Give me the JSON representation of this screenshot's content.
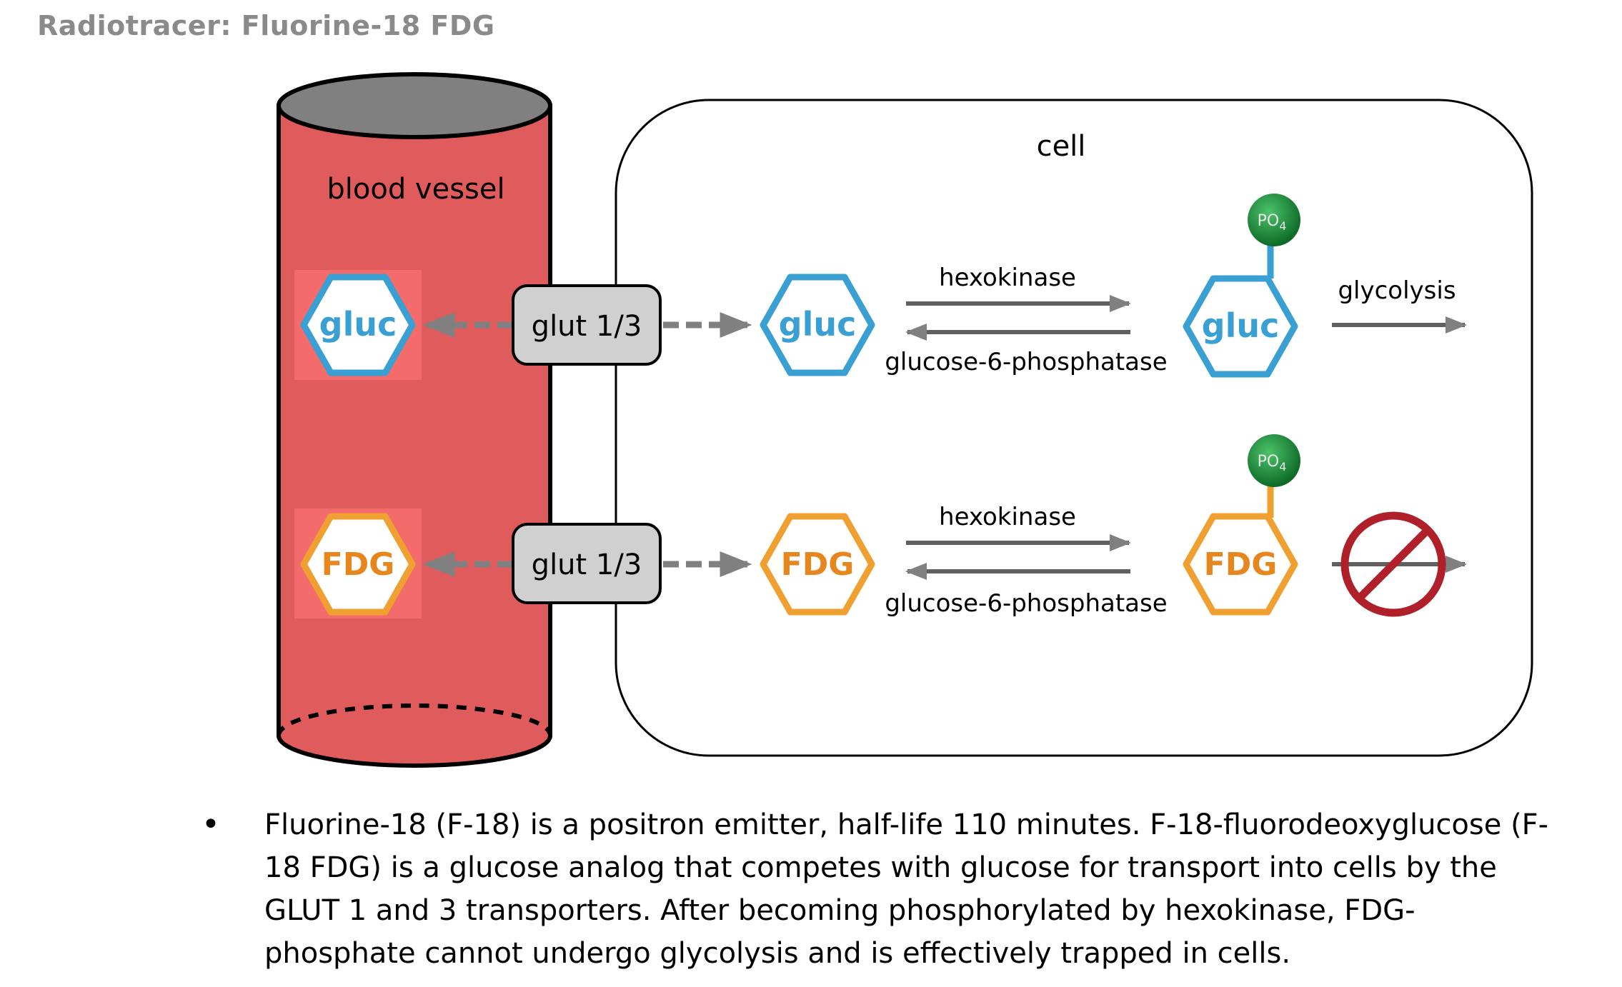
{
  "title": "Radiotracer: Fluorine-18 FDG",
  "labels": {
    "blood_vessel": "blood vessel",
    "cell": "cell",
    "transporter": "glut 1/3",
    "forward_enzyme": "hexokinase",
    "reverse_enzyme": "glucose-6-phosphatase",
    "glycolysis": "glycolysis",
    "phosphate": "PO",
    "phosphate_sub": "4"
  },
  "rows": [
    {
      "molecule": "gluc",
      "color": "#3a9fd2",
      "phosphorylated_fate": "glycolysis"
    },
    {
      "molecule": "FDG",
      "color": "#f0a030",
      "phosphorylated_fate": "blocked"
    }
  ],
  "colors": {
    "vessel_fill": "#e05c5c",
    "vessel_top": "#808080",
    "halo": "#f36b6b",
    "arrow_gray": "#808080",
    "phosphate_green": "#1a8a3a",
    "no_symbol": "#b0202a",
    "transporter_fill": "#d0d0d0"
  },
  "bullet": {
    "marker": "•",
    "text": "Fluorine-18 (F-18) is a positron emitter, half-life 110 minutes. F-18-fluorodeoxyglucose (F-18 FDG) is a glucose analog that competes with glucose for transport into cells by the GLUT 1 and 3 transporters. After becoming phosphorylated by hexokinase, FDG-phosphate cannot undergo glycolysis and is effectively trapped in cells."
  }
}
